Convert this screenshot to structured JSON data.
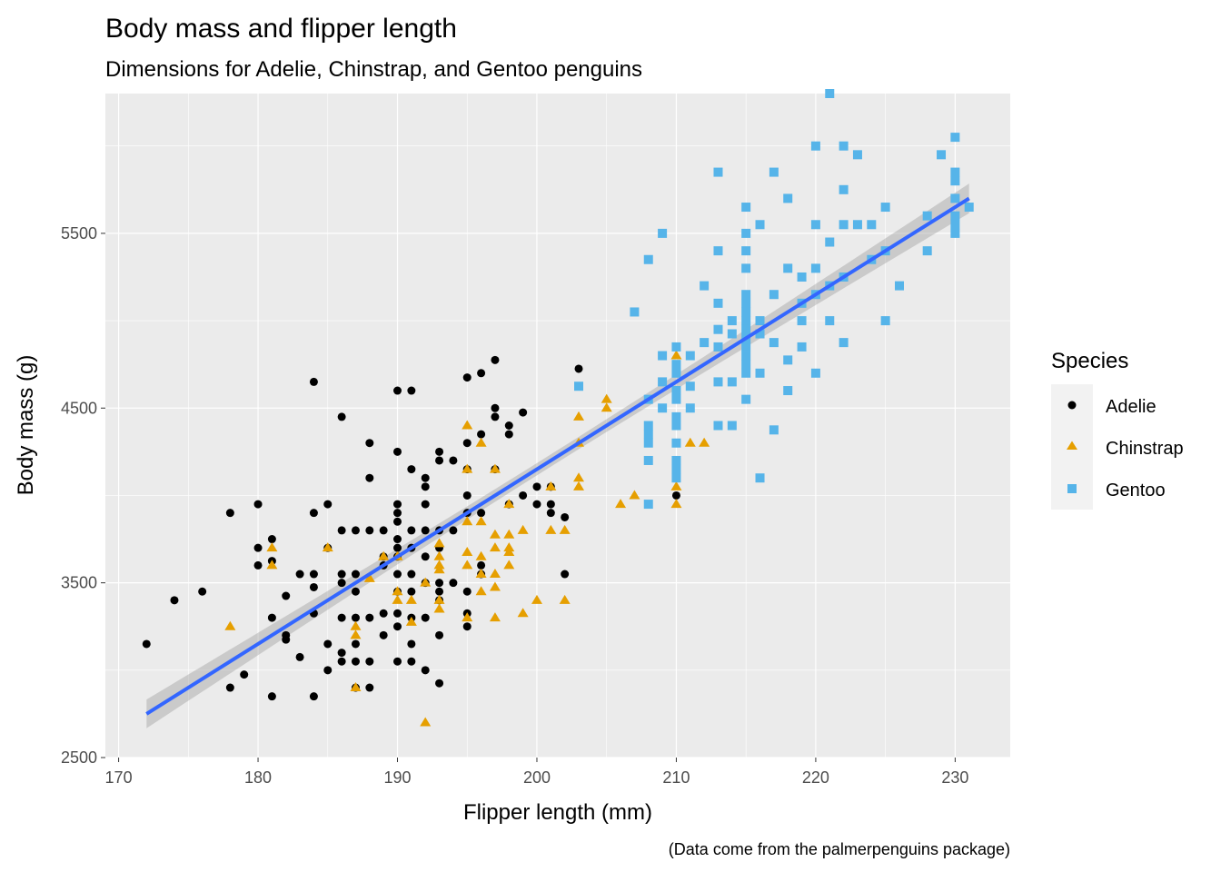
{
  "chart_data": {
    "type": "scatter",
    "title": "Body mass and flipper length",
    "subtitle": "Dimensions for Adelie, Chinstrap, and Gentoo penguins",
    "xlabel": "Flipper length (mm)",
    "ylabel": "Body mass (g)",
    "caption": "(Data come from the palmerpenguins package)",
    "xlim": [
      169.05,
      233.95
    ],
    "ylim": [
      2500,
      6300
    ],
    "x_ticks": [
      170,
      180,
      190,
      200,
      210,
      220,
      230
    ],
    "y_ticks": [
      2500,
      3500,
      4500,
      5500
    ],
    "grid": true,
    "legend": {
      "title": "Species",
      "position": "right",
      "entries": [
        {
          "label": "Adelie",
          "shape": "circle",
          "color": "#000000"
        },
        {
          "label": "Chinstrap",
          "shape": "triangle",
          "color": "#E69F00"
        },
        {
          "label": "Gentoo",
          "shape": "square",
          "color": "#56B4E9"
        }
      ]
    },
    "trend": {
      "type": "linear",
      "color": "#3366FF",
      "ribbon_color": "#999999",
      "x": [
        172,
        231
      ],
      "y": [
        2750,
        5700
      ],
      "ribbon_halfwidth_ends": 85,
      "ribbon_halfwidth_center": 35,
      "x_center": 200.9
    },
    "series": [
      {
        "name": "Adelie",
        "shape": "circle",
        "color": "#000000",
        "points": [
          [
            172,
            3150
          ],
          [
            174,
            3400
          ],
          [
            176,
            3450
          ],
          [
            178,
            3900
          ],
          [
            178,
            2900
          ],
          [
            179,
            2975
          ],
          [
            180,
            3950
          ],
          [
            180,
            3700
          ],
          [
            180,
            3600
          ],
          [
            181,
            3750
          ],
          [
            181,
            3625
          ],
          [
            181,
            3300
          ],
          [
            181,
            2850
          ],
          [
            182,
            3425
          ],
          [
            182,
            3200
          ],
          [
            182,
            3175
          ],
          [
            183,
            3075
          ],
          [
            183,
            3550
          ],
          [
            184,
            4650
          ],
          [
            184,
            3900
          ],
          [
            184,
            3550
          ],
          [
            184,
            3475
          ],
          [
            184,
            3325
          ],
          [
            184,
            2850
          ],
          [
            185,
            3950
          ],
          [
            185,
            3700
          ],
          [
            185,
            3150
          ],
          [
            185,
            3000
          ],
          [
            186,
            4450
          ],
          [
            186,
            3800
          ],
          [
            186,
            3550
          ],
          [
            186,
            3500
          ],
          [
            186,
            3300
          ],
          [
            186,
            3100
          ],
          [
            186,
            3050
          ],
          [
            187,
            3800
          ],
          [
            187,
            3550
          ],
          [
            187,
            3450
          ],
          [
            187,
            3300
          ],
          [
            187,
            3150
          ],
          [
            187,
            3050
          ],
          [
            187,
            2900
          ],
          [
            188,
            4300
          ],
          [
            188,
            4100
          ],
          [
            188,
            3800
          ],
          [
            188,
            3300
          ],
          [
            188,
            3050
          ],
          [
            188,
            2900
          ],
          [
            189,
            3800
          ],
          [
            189,
            3650
          ],
          [
            189,
            3600
          ],
          [
            189,
            3325
          ],
          [
            189,
            3200
          ],
          [
            190,
            4600
          ],
          [
            190,
            4250
          ],
          [
            190,
            3950
          ],
          [
            190,
            3900
          ],
          [
            190,
            3850
          ],
          [
            190,
            3750
          ],
          [
            190,
            3700
          ],
          [
            190,
            3650
          ],
          [
            190,
            3550
          ],
          [
            190,
            3450
          ],
          [
            190,
            3325
          ],
          [
            190,
            3250
          ],
          [
            190,
            3050
          ],
          [
            191,
            4600
          ],
          [
            191,
            4150
          ],
          [
            191,
            3800
          ],
          [
            191,
            3700
          ],
          [
            191,
            3550
          ],
          [
            191,
            3450
          ],
          [
            191,
            3300
          ],
          [
            191,
            3150
          ],
          [
            191,
            3050
          ],
          [
            192,
            4100
          ],
          [
            192,
            4050
          ],
          [
            192,
            3950
          ],
          [
            192,
            3800
          ],
          [
            192,
            3650
          ],
          [
            192,
            3500
          ],
          [
            192,
            3300
          ],
          [
            192,
            3000
          ],
          [
            193,
            4250
          ],
          [
            193,
            4200
          ],
          [
            193,
            3800
          ],
          [
            193,
            3700
          ],
          [
            193,
            3500
          ],
          [
            193,
            3450
          ],
          [
            193,
            3400
          ],
          [
            193,
            3200
          ],
          [
            193,
            2925
          ],
          [
            194,
            4200
          ],
          [
            194,
            3800
          ],
          [
            194,
            3500
          ],
          [
            195,
            4675
          ],
          [
            195,
            4300
          ],
          [
            195,
            4150
          ],
          [
            195,
            4000
          ],
          [
            195,
            3900
          ],
          [
            195,
            3450
          ],
          [
            195,
            3325
          ],
          [
            195,
            3250
          ],
          [
            196,
            4700
          ],
          [
            196,
            4350
          ],
          [
            196,
            3900
          ],
          [
            196,
            3600
          ],
          [
            196,
            3550
          ],
          [
            197,
            4775
          ],
          [
            197,
            4500
          ],
          [
            197,
            4450
          ],
          [
            197,
            4150
          ],
          [
            198,
            4400
          ],
          [
            198,
            4350
          ],
          [
            198,
            3950
          ],
          [
            199,
            4475
          ],
          [
            199,
            4000
          ],
          [
            200,
            4050
          ],
          [
            200,
            3950
          ],
          [
            201,
            4050
          ],
          [
            201,
            3950
          ],
          [
            201,
            3900
          ],
          [
            202,
            3875
          ],
          [
            202,
            3550
          ],
          [
            203,
            4725
          ],
          [
            210,
            4000
          ]
        ]
      },
      {
        "name": "Chinstrap",
        "shape": "triangle",
        "color": "#E69F00",
        "points": [
          [
            178,
            3250
          ],
          [
            181,
            3700
          ],
          [
            181,
            3600
          ],
          [
            185,
            3700
          ],
          [
            187,
            3250
          ],
          [
            187,
            3200
          ],
          [
            187,
            2900
          ],
          [
            188,
            3525
          ],
          [
            189,
            3650
          ],
          [
            190,
            3650
          ],
          [
            190,
            3450
          ],
          [
            190,
            3400
          ],
          [
            191,
            3400
          ],
          [
            191,
            3275
          ],
          [
            192,
            3500
          ],
          [
            192,
            2700
          ],
          [
            193,
            3725
          ],
          [
            193,
            3650
          ],
          [
            193,
            3600
          ],
          [
            193,
            3575
          ],
          [
            193,
            3350
          ],
          [
            193,
            3400
          ],
          [
            195,
            4400
          ],
          [
            195,
            4150
          ],
          [
            195,
            3850
          ],
          [
            195,
            3675
          ],
          [
            195,
            3600
          ],
          [
            195,
            3300
          ],
          [
            196,
            4300
          ],
          [
            196,
            3850
          ],
          [
            196,
            3650
          ],
          [
            196,
            3550
          ],
          [
            196,
            3450
          ],
          [
            197,
            4150
          ],
          [
            197,
            3775
          ],
          [
            197,
            3700
          ],
          [
            197,
            3550
          ],
          [
            197,
            3475
          ],
          [
            197,
            3300
          ],
          [
            198,
            3950
          ],
          [
            198,
            3775
          ],
          [
            198,
            3700
          ],
          [
            198,
            3675
          ],
          [
            198,
            3600
          ],
          [
            199,
            3800
          ],
          [
            199,
            3325
          ],
          [
            200,
            3400
          ],
          [
            201,
            4050
          ],
          [
            201,
            3800
          ],
          [
            202,
            3800
          ],
          [
            202,
            3400
          ],
          [
            203,
            4450
          ],
          [
            203,
            4300
          ],
          [
            203,
            4100
          ],
          [
            203,
            4050
          ],
          [
            205,
            4550
          ],
          [
            205,
            4500
          ],
          [
            206,
            3950
          ],
          [
            207,
            4000
          ],
          [
            210,
            4800
          ],
          [
            210,
            4050
          ],
          [
            210,
            3950
          ],
          [
            211,
            4300
          ],
          [
            212,
            4300
          ]
        ]
      },
      {
        "name": "Gentoo",
        "shape": "square",
        "color": "#56B4E9",
        "points": [
          [
            203,
            4625
          ],
          [
            207,
            5050
          ],
          [
            208,
            5350
          ],
          [
            208,
            4550
          ],
          [
            208,
            4400
          ],
          [
            208,
            4350
          ],
          [
            208,
            4300
          ],
          [
            208,
            4200
          ],
          [
            208,
            3950
          ],
          [
            209,
            5500
          ],
          [
            209,
            4800
          ],
          [
            209,
            4650
          ],
          [
            209,
            4500
          ],
          [
            210,
            4850
          ],
          [
            210,
            4750
          ],
          [
            210,
            4700
          ],
          [
            210,
            4600
          ],
          [
            210,
            4550
          ],
          [
            210,
            4450
          ],
          [
            210,
            4400
          ],
          [
            210,
            4300
          ],
          [
            210,
            4200
          ],
          [
            210,
            4150
          ],
          [
            210,
            4100
          ],
          [
            211,
            4800
          ],
          [
            211,
            4625
          ],
          [
            211,
            4500
          ],
          [
            212,
            5200
          ],
          [
            212,
            4875
          ],
          [
            213,
            5850
          ],
          [
            213,
            5400
          ],
          [
            213,
            5100
          ],
          [
            213,
            4950
          ],
          [
            213,
            4850
          ],
          [
            213,
            4650
          ],
          [
            213,
            4400
          ],
          [
            214,
            5000
          ],
          [
            214,
            4650
          ],
          [
            214,
            4400
          ],
          [
            214,
            4925
          ],
          [
            215,
            5650
          ],
          [
            215,
            5500
          ],
          [
            215,
            5400
          ],
          [
            215,
            5300
          ],
          [
            215,
            5150
          ],
          [
            215,
            5100
          ],
          [
            215,
            5050
          ],
          [
            215,
            5000
          ],
          [
            215,
            4950
          ],
          [
            215,
            4900
          ],
          [
            215,
            4850
          ],
          [
            215,
            4800
          ],
          [
            215,
            4750
          ],
          [
            215,
            4700
          ],
          [
            215,
            4550
          ],
          [
            216,
            5550
          ],
          [
            216,
            5000
          ],
          [
            216,
            4925
          ],
          [
            216,
            4700
          ],
          [
            216,
            4100
          ],
          [
            217,
            5850
          ],
          [
            217,
            5150
          ],
          [
            217,
            4875
          ],
          [
            217,
            4375
          ],
          [
            218,
            5700
          ],
          [
            218,
            5300
          ],
          [
            218,
            4775
          ],
          [
            218,
            4600
          ],
          [
            219,
            5250
          ],
          [
            219,
            5100
          ],
          [
            219,
            5000
          ],
          [
            219,
            4850
          ],
          [
            220,
            6000
          ],
          [
            220,
            5550
          ],
          [
            220,
            5300
          ],
          [
            220,
            5150
          ],
          [
            220,
            4700
          ],
          [
            221,
            6300
          ],
          [
            221,
            5450
          ],
          [
            221,
            5200
          ],
          [
            221,
            5000
          ],
          [
            222,
            6000
          ],
          [
            222,
            5750
          ],
          [
            222,
            5550
          ],
          [
            222,
            5250
          ],
          [
            222,
            4875
          ],
          [
            223,
            5950
          ],
          [
            223,
            5550
          ],
          [
            224,
            5550
          ],
          [
            224,
            5350
          ],
          [
            225,
            5650
          ],
          [
            225,
            5400
          ],
          [
            225,
            5000
          ],
          [
            226,
            5200
          ],
          [
            228,
            5600
          ],
          [
            228,
            5400
          ],
          [
            229,
            5950
          ],
          [
            230,
            6050
          ],
          [
            230,
            5850
          ],
          [
            230,
            5800
          ],
          [
            230,
            5700
          ],
          [
            230,
            5600
          ],
          [
            230,
            5550
          ],
          [
            230,
            5500
          ],
          [
            231,
            5650
          ]
        ]
      }
    ]
  }
}
